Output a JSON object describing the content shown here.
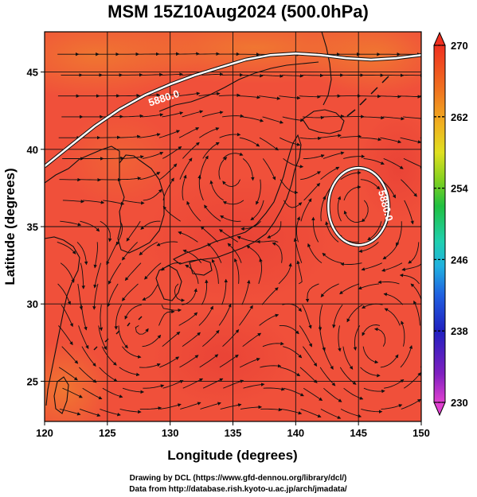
{
  "title": "MSM 15Z10Aug2024 (500.0hPa)",
  "xlabel": "Longitude (degrees)",
  "ylabel": "Latitude  (degrees)",
  "credit_line1": "Drawing by DCL (https://www.gfd-dennou.org/library/dcl/)",
  "credit_line2": "Data from http://database.rish.kyoto-u.ac.jp/arch/jmadata/",
  "chart_data": {
    "type": "heatmap",
    "title": "MSM 15Z10Aug2024 (500.0hPa)",
    "xlabel": "Longitude (degrees)",
    "ylabel": "Latitude  (degrees)",
    "xlim": [
      120,
      150
    ],
    "ylim": [
      22.4,
      47.6
    ],
    "xticks": [
      120,
      125,
      130,
      135,
      140,
      145,
      150
    ],
    "xtick_labels": [
      "120",
      "125",
      "130",
      "135",
      "140",
      "145",
      "150"
    ],
    "yticks": [
      25,
      30,
      35,
      40,
      45
    ],
    "ytick_labels": [
      "25",
      "30",
      "35",
      "40",
      "45"
    ],
    "grid": true,
    "colorbar": {
      "min": 230,
      "max": 270,
      "ticks": [
        230,
        238,
        246,
        254,
        262,
        270
      ],
      "tick_labels": [
        "230",
        "238",
        "246",
        "254",
        "262",
        "270"
      ],
      "colors": [
        "#e040d0",
        "#8020c0",
        "#2020c0",
        "#2060e0",
        "#20b0e0",
        "#20d0b0",
        "#20c040",
        "#80d020",
        "#e0e020",
        "#f0b020",
        "#f07020",
        "#f03020"
      ]
    },
    "contours": [
      {
        "label": "5880.0",
        "level": 5880.0,
        "color": "#ffffff",
        "lon": [
          120,
          122,
          124,
          126,
          128,
          130,
          132,
          134,
          136,
          138,
          140,
          142,
          144,
          146,
          148,
          150
        ],
        "lat": [
          38.9,
          40.2,
          41.5,
          42.6,
          43.5,
          44.2,
          44.8,
          45.3,
          45.8,
          46.1,
          46.2,
          46.1,
          45.9,
          45.8,
          45.9,
          46.1
        ]
      },
      {
        "label": "5880.0",
        "level": 5880.0,
        "color": "#ffffff",
        "closed": true,
        "center": [
          145.0,
          36.3
        ],
        "radius_lon": 2.4,
        "radius_lat": 2.5
      }
    ],
    "circulations": [
      {
        "center": [
          145.0,
          36.3
        ],
        "sense": "clockwise"
      },
      {
        "center": [
          131.0,
          31.0
        ],
        "sense": "counterclockwise"
      },
      {
        "center": [
          127.5,
          28.5
        ],
        "sense": "counterclockwise"
      },
      {
        "center": [
          146.5,
          27.5
        ],
        "sense": "counterclockwise"
      },
      {
        "center": [
          135.0,
          38.5
        ],
        "sense": "clockwise"
      }
    ]
  }
}
